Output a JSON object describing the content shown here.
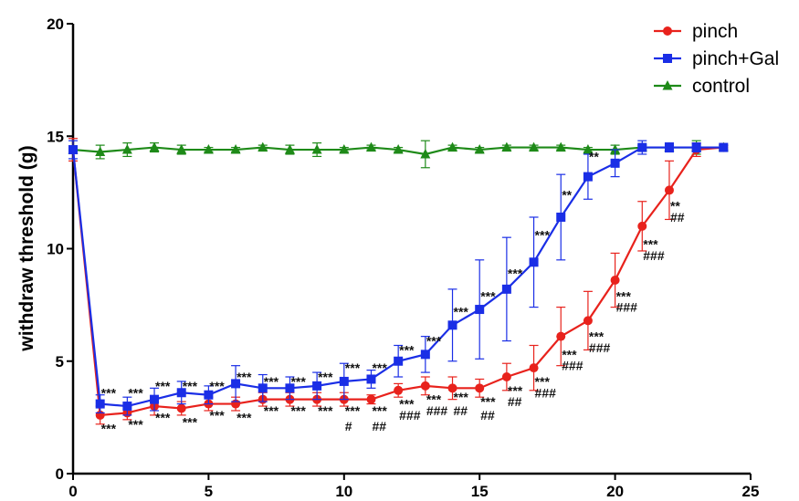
{
  "chart_data": {
    "type": "line",
    "xlabel": "",
    "ylabel": "withdraw threshold (g)",
    "xlim": [
      0,
      25
    ],
    "ylim": [
      0,
      20
    ],
    "xticks": [
      0,
      5,
      10,
      15,
      20,
      25
    ],
    "yticks": [
      0,
      5,
      10,
      15,
      20
    ],
    "legend_position": "top-right",
    "series": [
      {
        "name": "pinch",
        "color": "#e8221c",
        "marker": "circle",
        "x": [
          0,
          1,
          2,
          3,
          4,
          5,
          6,
          7,
          8,
          9,
          10,
          11,
          12,
          13,
          14,
          15,
          16,
          17,
          18,
          19,
          20,
          21,
          22,
          23,
          24
        ],
        "y": [
          14.4,
          2.6,
          2.7,
          3.0,
          2.9,
          3.1,
          3.1,
          3.3,
          3.3,
          3.3,
          3.3,
          3.3,
          3.7,
          3.9,
          3.8,
          3.8,
          4.3,
          4.7,
          6.1,
          6.8,
          8.6,
          11.0,
          12.6,
          14.4,
          14.5
        ],
        "err": [
          0.5,
          0.4,
          0.3,
          0.4,
          0.3,
          0.3,
          0.3,
          0.3,
          0.3,
          0.3,
          0.3,
          0.2,
          0.3,
          0.4,
          0.5,
          0.4,
          0.6,
          1.0,
          1.3,
          1.3,
          1.2,
          1.1,
          1.3,
          0.3,
          0.1
        ]
      },
      {
        "name": "pinch+Gal",
        "color": "#1a2ee6",
        "marker": "square",
        "x": [
          0,
          1,
          2,
          3,
          4,
          5,
          6,
          7,
          8,
          9,
          10,
          11,
          12,
          13,
          14,
          15,
          16,
          17,
          18,
          19,
          20,
          21,
          22,
          23,
          24
        ],
        "y": [
          14.4,
          3.1,
          3.0,
          3.3,
          3.6,
          3.5,
          4.0,
          3.8,
          3.8,
          3.9,
          4.1,
          4.2,
          5.0,
          5.3,
          6.6,
          7.3,
          8.2,
          9.4,
          11.4,
          13.2,
          13.8,
          14.5,
          14.5,
          14.5,
          14.5
        ],
        "err": [
          0.4,
          0.4,
          0.4,
          0.5,
          0.5,
          0.4,
          0.8,
          0.6,
          0.5,
          0.6,
          0.8,
          0.4,
          0.7,
          0.8,
          1.6,
          2.2,
          2.3,
          2.0,
          1.9,
          1.0,
          0.6,
          0.3,
          0.2,
          0.2,
          0.1
        ]
      },
      {
        "name": "control",
        "color": "#1e8a18",
        "marker": "triangle",
        "x": [
          0,
          1,
          2,
          3,
          4,
          5,
          6,
          7,
          8,
          9,
          10,
          11,
          12,
          13,
          14,
          15,
          16,
          17,
          18,
          19,
          20,
          21,
          22,
          23,
          24
        ],
        "y": [
          14.4,
          14.3,
          14.4,
          14.5,
          14.4,
          14.4,
          14.4,
          14.5,
          14.4,
          14.4,
          14.4,
          14.5,
          14.4,
          14.2,
          14.5,
          14.4,
          14.5,
          14.5,
          14.5,
          14.4,
          14.4,
          14.5,
          14.5,
          14.5,
          14.5
        ],
        "err": [
          0.1,
          0.3,
          0.3,
          0.2,
          0.2,
          0.1,
          0.1,
          0.1,
          0.2,
          0.3,
          0.1,
          0.1,
          0.1,
          0.6,
          0.1,
          0.1,
          0.1,
          0.1,
          0.1,
          0.1,
          0.2,
          0.1,
          0.1,
          0.3,
          0.1
        ]
      }
    ],
    "annotations": [
      {
        "x": 1,
        "y": 3.6,
        "text": "***"
      },
      {
        "x": 2,
        "y": 3.6,
        "text": "***"
      },
      {
        "x": 3,
        "y": 3.9,
        "text": "***"
      },
      {
        "x": 4,
        "y": 3.9,
        "text": "***"
      },
      {
        "x": 5,
        "y": 3.9,
        "text": "***"
      },
      {
        "x": 6,
        "y": 4.3,
        "text": "***"
      },
      {
        "x": 7,
        "y": 4.1,
        "text": "***"
      },
      {
        "x": 8,
        "y": 4.1,
        "text": "***"
      },
      {
        "x": 9,
        "y": 4.3,
        "text": "***"
      },
      {
        "x": 10,
        "y": 4.7,
        "text": "***"
      },
      {
        "x": 11,
        "y": 4.7,
        "text": "***"
      },
      {
        "x": 12,
        "y": 5.5,
        "text": "***"
      },
      {
        "x": 13,
        "y": 5.9,
        "text": "***"
      },
      {
        "x": 14,
        "y": 7.2,
        "text": "***"
      },
      {
        "x": 15,
        "y": 7.9,
        "text": "***"
      },
      {
        "x": 16,
        "y": 8.9,
        "text": "***"
      },
      {
        "x": 17,
        "y": 10.6,
        "text": "***"
      },
      {
        "x": 18,
        "y": 12.4,
        "text": "**"
      },
      {
        "x": 19,
        "y": 14.1,
        "text": "**"
      },
      {
        "x": 1,
        "y": 2.0,
        "text": "***"
      },
      {
        "x": 2,
        "y": 2.2,
        "text": "***"
      },
      {
        "x": 3,
        "y": 2.5,
        "text": "***"
      },
      {
        "x": 4,
        "y": 2.3,
        "text": "***"
      },
      {
        "x": 5,
        "y": 2.6,
        "text": "***"
      },
      {
        "x": 6,
        "y": 2.5,
        "text": "***"
      },
      {
        "x": 7,
        "y": 2.8,
        "text": "***"
      },
      {
        "x": 8,
        "y": 2.8,
        "text": "***"
      },
      {
        "x": 9,
        "y": 2.8,
        "text": "***"
      },
      {
        "x": 10,
        "y": 2.8,
        "text": "***"
      },
      {
        "x": 11,
        "y": 2.8,
        "text": "***"
      },
      {
        "x": 12,
        "y": 3.1,
        "text": "***"
      },
      {
        "x": 13,
        "y": 3.3,
        "text": "***"
      },
      {
        "x": 14,
        "y": 3.4,
        "text": "***"
      },
      {
        "x": 15,
        "y": 3.2,
        "text": "***"
      },
      {
        "x": 16,
        "y": 3.7,
        "text": "***"
      },
      {
        "x": 17,
        "y": 4.1,
        "text": "***"
      },
      {
        "x": 18,
        "y": 5.3,
        "text": "***"
      },
      {
        "x": 19,
        "y": 6.1,
        "text": "***"
      },
      {
        "x": 20,
        "y": 7.9,
        "text": "***"
      },
      {
        "x": 21,
        "y": 10.2,
        "text": "***"
      },
      {
        "x": 22,
        "y": 11.9,
        "text": "**"
      },
      {
        "x": 10,
        "y": 2.1,
        "text": "#"
      },
      {
        "x": 11,
        "y": 2.1,
        "text": "##"
      },
      {
        "x": 12,
        "y": 2.6,
        "text": "###"
      },
      {
        "x": 13,
        "y": 2.8,
        "text": "###"
      },
      {
        "x": 14,
        "y": 2.8,
        "text": "##"
      },
      {
        "x": 15,
        "y": 2.6,
        "text": "##"
      },
      {
        "x": 16,
        "y": 3.2,
        "text": "##"
      },
      {
        "x": 17,
        "y": 3.6,
        "text": "###"
      },
      {
        "x": 18,
        "y": 4.8,
        "text": "###"
      },
      {
        "x": 19,
        "y": 5.6,
        "text": "###"
      },
      {
        "x": 20,
        "y": 7.4,
        "text": "###"
      },
      {
        "x": 21,
        "y": 9.7,
        "text": "###"
      },
      {
        "x": 22,
        "y": 11.4,
        "text": "##"
      }
    ]
  }
}
